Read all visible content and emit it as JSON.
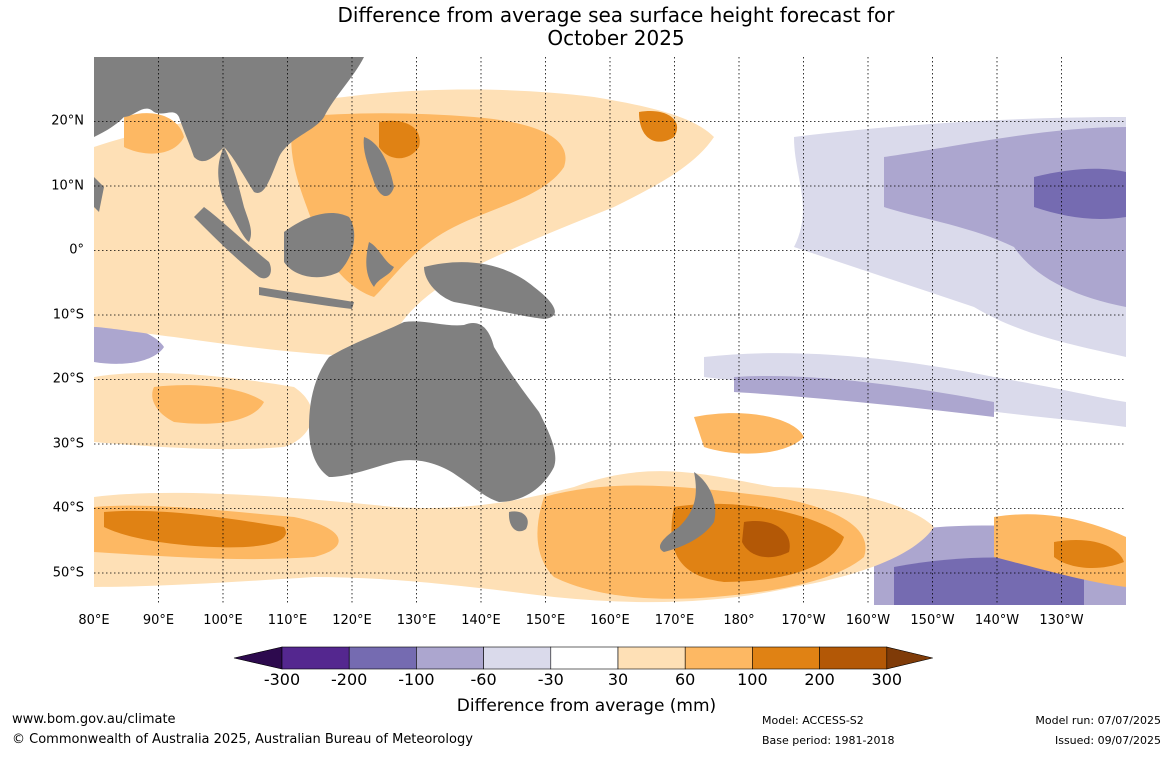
{
  "title": {
    "line1": "Difference from average sea surface height forecast for",
    "line2": "October 2025"
  },
  "map": {
    "lat_labels": [
      "20°N",
      "10°N",
      "0°",
      "10°S",
      "20°S",
      "30°S",
      "40°S",
      "50°S"
    ],
    "lat_values": [
      20,
      10,
      0,
      -10,
      -20,
      -30,
      -40,
      -50
    ],
    "lon_labels": [
      "80°E",
      "90°E",
      "100°E",
      "110°E",
      "120°E",
      "130°E",
      "140°E",
      "150°E",
      "160°E",
      "170°E",
      "180°",
      "170°W",
      "160°W",
      "150°W",
      "140°W",
      "130°W"
    ],
    "lon_values": [
      80,
      90,
      100,
      110,
      120,
      130,
      140,
      150,
      160,
      170,
      180,
      190,
      200,
      210,
      220,
      230
    ],
    "extent": {
      "lon_min": 80,
      "lon_max": 240,
      "lat_min": -55,
      "lat_max": 30
    },
    "land_color": "#808080",
    "grid_color": "#000000"
  },
  "colorbar": {
    "ticks": [
      "-300",
      "-200",
      "-100",
      "-60",
      "-30",
      "30",
      "60",
      "100",
      "200",
      "300"
    ],
    "colors": [
      "#2d0a4e",
      "#54278f",
      "#756bb1",
      "#aca6cf",
      "#dadaeb",
      "#ffffff",
      "#fee0b6",
      "#fdb863",
      "#e08214",
      "#b35806",
      "#7f3b08"
    ],
    "label": "Difference from average (mm)"
  },
  "footer": {
    "url": "www.bom.gov.au/climate",
    "copyright": "© Commonwealth of Australia 2025, Australian Bureau of Meteorology",
    "model": "Model: ACCESS-S2",
    "base_period": "Base period: 1981-2018",
    "model_run": "Model run: 07/07/2025",
    "issued": "Issued: 09/07/2025"
  }
}
